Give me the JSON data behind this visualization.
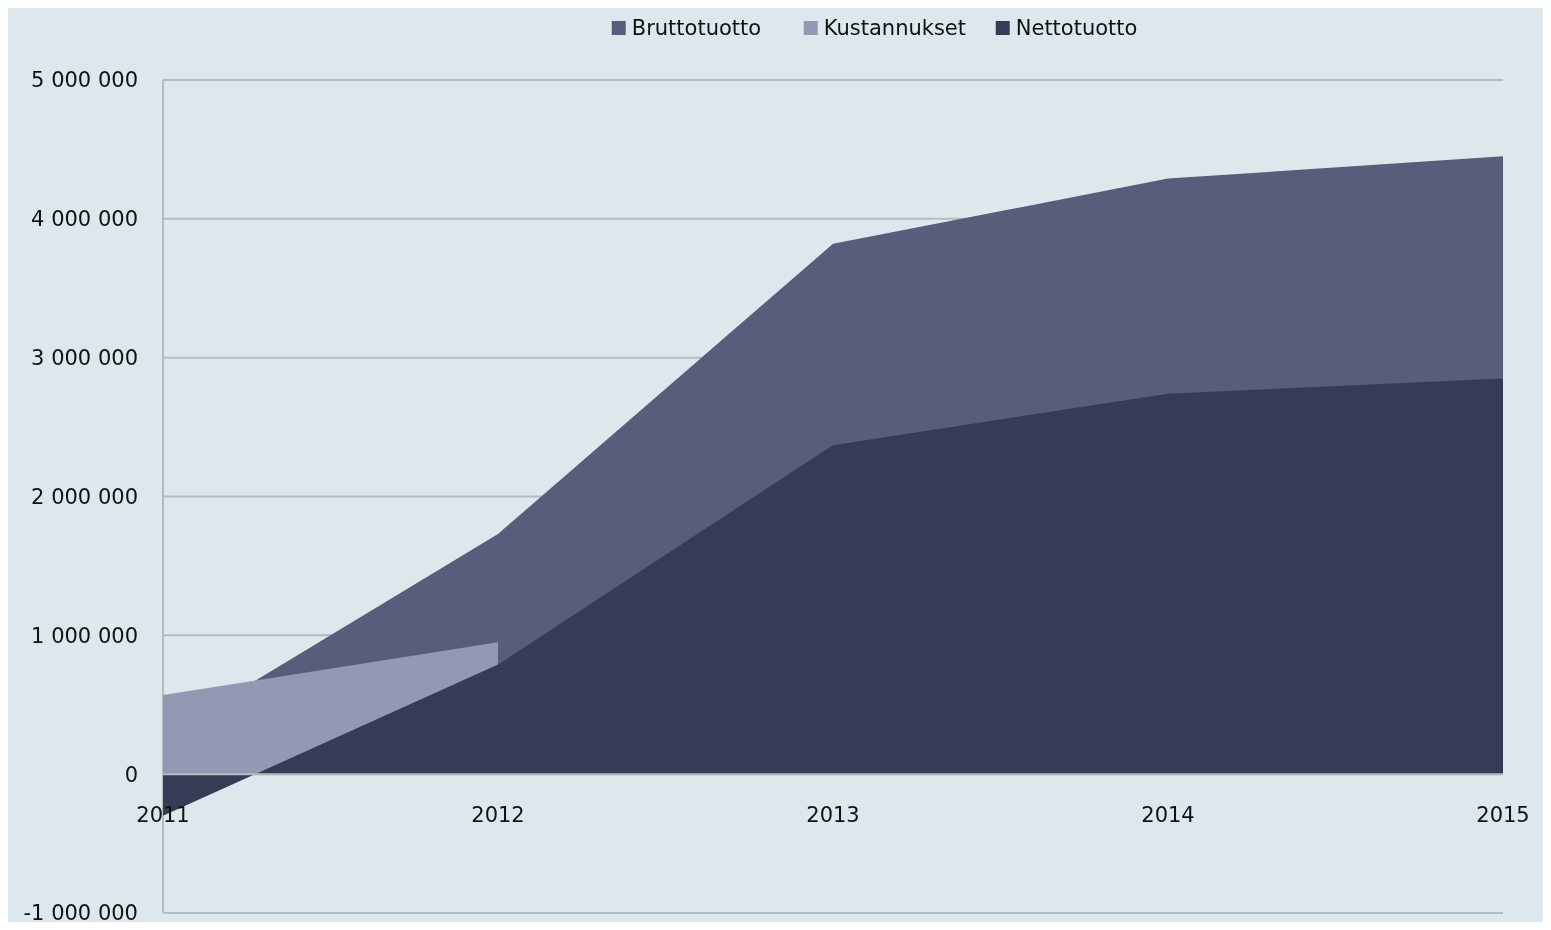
{
  "chart_data": {
    "type": "area",
    "categories": [
      "2011",
      "2012",
      "2013",
      "2014",
      "2015"
    ],
    "series": [
      {
        "name": "Bruttotuotto",
        "color": "#565e7c",
        "values": [
          270000,
          1730000,
          3820000,
          4290000,
          4450000
        ]
      },
      {
        "name": "Kustannukset",
        "color": "#9499b3",
        "values": [
          570000,
          950000,
          null,
          null,
          null
        ]
      },
      {
        "name": "Nettotuotto",
        "color": "#383b55",
        "values": [
          -300000,
          790000,
          2370000,
          2740000,
          2850000
        ]
      }
    ],
    "ylim": [
      -1000000,
      5000000
    ],
    "yticks": [
      {
        "value": -1000000,
        "label": "-1 000 000"
      },
      {
        "value": 0,
        "label": "0"
      },
      {
        "value": 1000000,
        "label": "1 000 000"
      },
      {
        "value": 2000000,
        "label": "2 000 000"
      },
      {
        "value": 3000000,
        "label": "3 000 000"
      },
      {
        "value": 4000000,
        "label": "4 000 000"
      },
      {
        "value": 5000000,
        "label": "5 000 000"
      }
    ],
    "grid": "y",
    "legend": "top"
  }
}
